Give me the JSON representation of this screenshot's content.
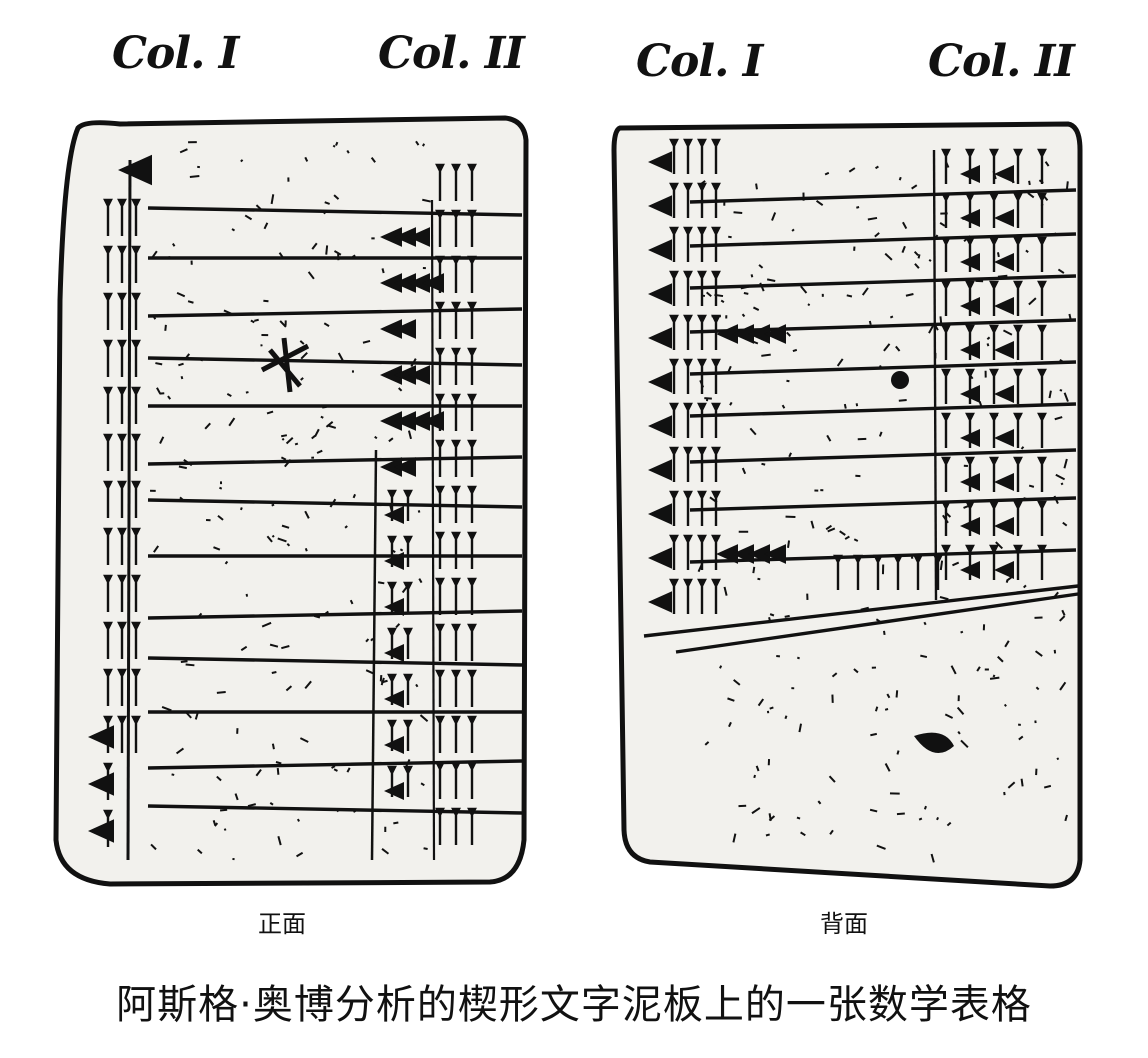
{
  "figure": {
    "front": {
      "col1_label": "Col. I",
      "col2_label": "Col. II",
      "face_label": "正面"
    },
    "back": {
      "col1_label": "Col. I",
      "col2_label": "Col. II",
      "face_label": "背面"
    },
    "caption": "阿斯格·奥博分析的楔形文字泥板上的一张数学表格"
  },
  "colors": {
    "ink": "#111111",
    "clay": "#f2f1ed",
    "paper": "#ffffff"
  }
}
